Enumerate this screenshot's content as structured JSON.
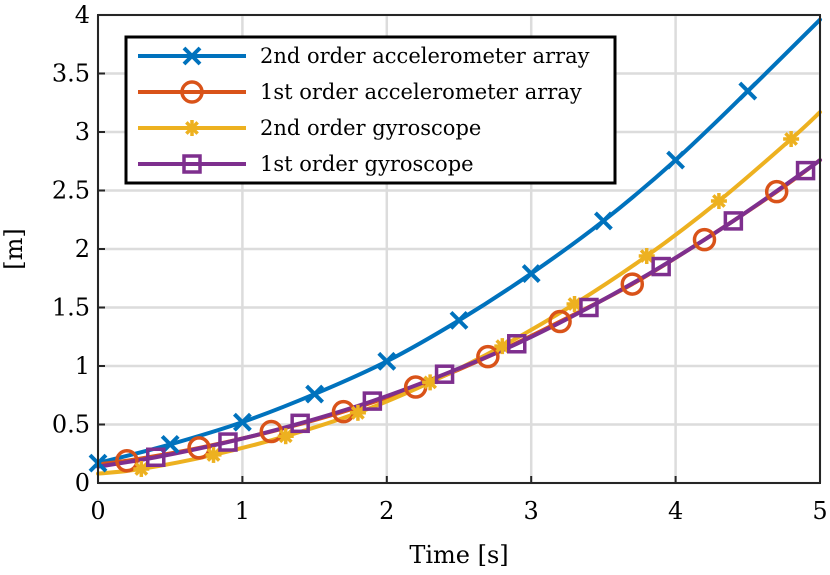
{
  "chart_data": {
    "type": "line",
    "xlabel": "Time [s]",
    "ylabel": "[m]",
    "xlim": [
      0,
      5
    ],
    "ylim": [
      0,
      4
    ],
    "xticks": [
      "0",
      "1",
      "2",
      "3",
      "4",
      "5"
    ],
    "yticks": [
      "0",
      "0.5",
      "1",
      "1.5",
      "2",
      "2.5",
      "3",
      "3.5",
      "4"
    ],
    "grid": true,
    "legend_position": "top-left",
    "series": [
      {
        "name": "2nd order accelerometer array",
        "color": "#0072BD",
        "marker": "x",
        "x": [
          0,
          0.5,
          1,
          1.5,
          2,
          2.5,
          3,
          3.5,
          4,
          4.5,
          5
        ],
        "y": [
          0.17,
          0.33,
          0.52,
          0.76,
          1.04,
          1.39,
          1.79,
          2.24,
          2.76,
          3.35,
          3.96
        ],
        "marker_x": [
          0,
          0.5,
          1,
          1.5,
          2,
          2.5,
          3,
          3.5,
          4,
          4.5
        ]
      },
      {
        "name": "1st order accelerometer array",
        "color": "#D95319",
        "marker": "o",
        "x": [
          0,
          0.2,
          0.7,
          1.2,
          1.7,
          2.2,
          2.7,
          3.2,
          3.7,
          4.2,
          4.7,
          5
        ],
        "y": [
          0.16,
          0.19,
          0.3,
          0.44,
          0.61,
          0.82,
          1.08,
          1.38,
          1.7,
          2.08,
          2.49,
          2.76
        ],
        "marker_x": [
          0.2,
          0.7,
          1.2,
          1.7,
          2.2,
          2.7,
          3.2,
          3.7,
          4.2,
          4.7
        ]
      },
      {
        "name": "2nd order gyroscope",
        "color": "#EDB120",
        "marker": "*",
        "x": [
          0,
          0.3,
          0.8,
          1.3,
          1.8,
          2.3,
          2.8,
          3.3,
          3.8,
          4.3,
          4.8,
          5
        ],
        "y": [
          0.08,
          0.12,
          0.24,
          0.4,
          0.6,
          0.86,
          1.17,
          1.53,
          1.94,
          2.41,
          2.94,
          3.17
        ],
        "marker_x": [
          0.3,
          0.8,
          1.3,
          1.8,
          2.3,
          2.8,
          3.3,
          3.8,
          4.3,
          4.8
        ]
      },
      {
        "name": "1st order gyroscope",
        "color": "#7E2F8E",
        "marker": "s",
        "x": [
          0,
          0.4,
          0.9,
          1.4,
          1.9,
          2.4,
          2.9,
          3.4,
          3.9,
          4.4,
          4.9,
          5
        ],
        "y": [
          0.14,
          0.22,
          0.35,
          0.51,
          0.7,
          0.93,
          1.19,
          1.5,
          1.85,
          2.24,
          2.67,
          2.76
        ],
        "marker_x": [
          0.4,
          0.9,
          1.4,
          1.9,
          2.4,
          2.9,
          3.4,
          3.9,
          4.4,
          4.9
        ]
      }
    ]
  }
}
